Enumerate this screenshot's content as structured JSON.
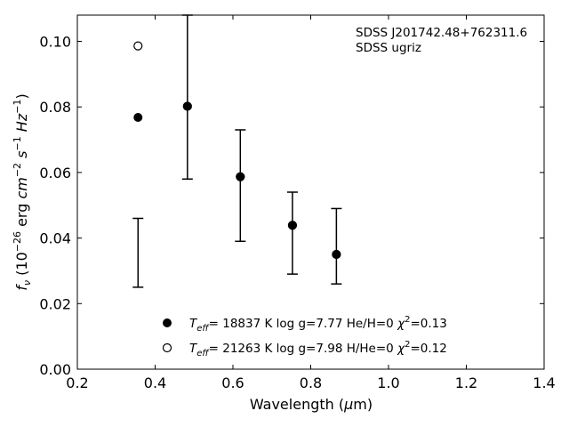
{
  "chart_data": {
    "type": "scatter",
    "xlabel": "Wavelength (μm)",
    "ylabel": "f_ν (10^−26 erg cm^−2 s^−1 Hz^−1)",
    "xlim": [
      0.2,
      1.4
    ],
    "ylim": [
      0.0,
      0.108
    ],
    "xticks": [
      "0.2",
      "0.4",
      "0.6",
      "0.8",
      "1.0",
      "1.2",
      "1.4"
    ],
    "yticks": [
      "0.00",
      "0.02",
      "0.04",
      "0.06",
      "0.08",
      "0.10"
    ],
    "annotation": [
      "SDSS J201742.48+762311.6",
      "SDSS ugriz"
    ],
    "observed": {
      "x": [
        0.356,
        0.483,
        0.619,
        0.753,
        0.866
      ],
      "lower": [
        0.025,
        0.058,
        0.039,
        0.029,
        0.026
      ],
      "upper": [
        0.046,
        0.108,
        0.073,
        0.054,
        0.049
      ]
    },
    "series": [
      {
        "label": "T_eff= 18837 K  log g=7.77  He/H=0  χ²=0.13",
        "marker": "filled",
        "x": [
          0.356,
          0.483,
          0.619,
          0.753,
          0.866
        ],
        "y": [
          0.0768,
          0.0802,
          0.0587,
          0.0439,
          0.035
        ]
      },
      {
        "label": "T_eff= 21263 K  log g=7.98  H/He=0  χ²=0.12",
        "marker": "open",
        "x": [
          0.356,
          0.483,
          0.619,
          0.753,
          0.866
        ],
        "y": [
          0.0986,
          0.0802,
          0.0587,
          0.0439,
          0.035
        ]
      }
    ],
    "legend_position": "lower-center",
    "grid": false
  }
}
